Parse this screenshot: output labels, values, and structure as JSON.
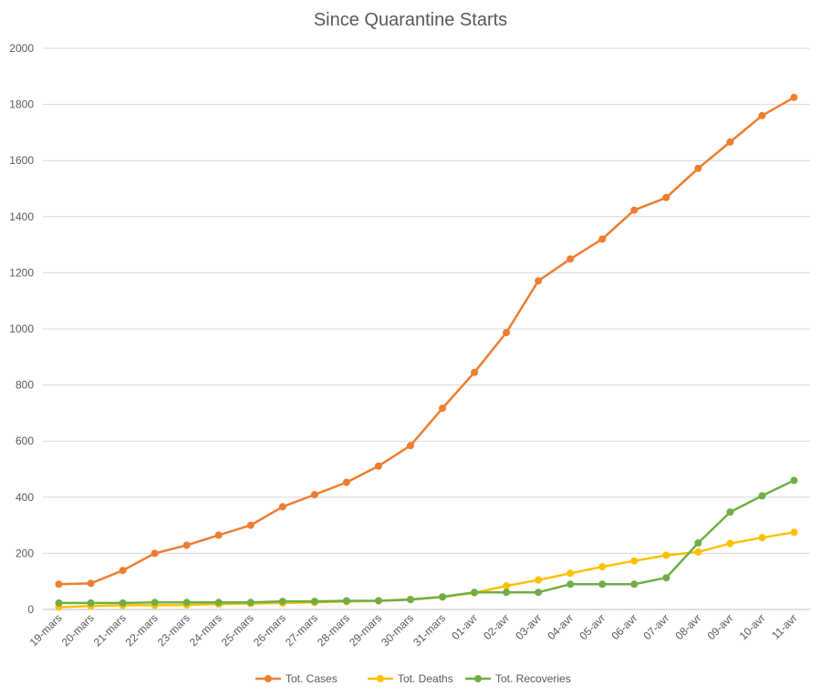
{
  "chart_data": {
    "type": "line",
    "title": "Since Quarantine Starts",
    "xlabel": "",
    "ylabel": "",
    "ylim": [
      0,
      2000
    ],
    "yticks": [
      0,
      200,
      400,
      600,
      800,
      1000,
      1200,
      1400,
      1600,
      1800,
      2000
    ],
    "grid": true,
    "legend_position": "bottom",
    "categories": [
      "19-mars",
      "20-mars",
      "21-mars",
      "22-mars",
      "23-mars",
      "24-mars",
      "25-mars",
      "26-mars",
      "27-mars",
      "28-mars",
      "29-mars",
      "30-mars",
      "31-mars",
      "01-avr",
      "02-avr",
      "03-avr",
      "04-avr",
      "05-avr",
      "06-avr",
      "07-avr",
      "08-avr",
      "09-avr",
      "10-avr",
      "11-avr"
    ],
    "series": [
      {
        "name": "Tot. Cases",
        "color": "#ED7D31",
        "values": [
          90,
          93,
          139,
          200,
          229,
          265,
          300,
          366,
          409,
          453,
          511,
          584,
          717,
          845,
          987,
          1171,
          1249,
          1320,
          1423,
          1468,
          1572,
          1666,
          1760,
          1825
        ]
      },
      {
        "name": "Tot. Deaths",
        "color": "#FFC000",
        "values": [
          8,
          12,
          15,
          15,
          16,
          19,
          21,
          23,
          25,
          28,
          31,
          36,
          44,
          59,
          84,
          105,
          129,
          152,
          173,
          193,
          205,
          235,
          256,
          275
        ]
      },
      {
        "name": "Tot. Recoveries",
        "color": "#70AD47",
        "values": [
          23,
          23,
          23,
          25,
          25,
          25,
          25,
          29,
          29,
          31,
          31,
          35,
          45,
          61,
          61,
          61,
          90,
          90,
          90,
          113,
          237,
          347,
          405,
          460
        ]
      }
    ]
  }
}
